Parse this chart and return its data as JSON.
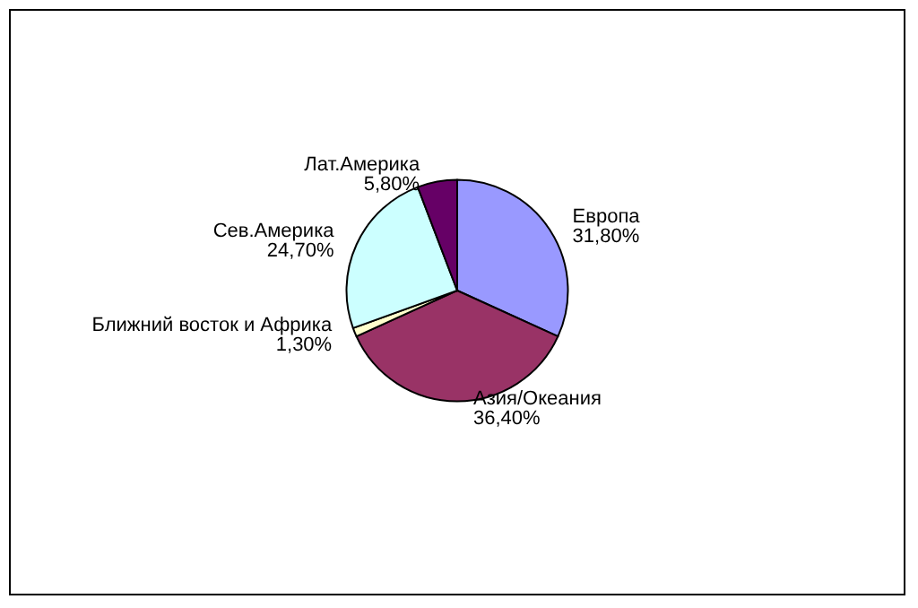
{
  "chart_data": {
    "type": "pie",
    "categories": [
      "Европа",
      "Азия/Океания",
      "Ближний восток и Африка",
      "Сев.Америка",
      "Лат.Америка"
    ],
    "values": [
      31.8,
      36.4,
      1.3,
      24.7,
      5.8
    ],
    "value_labels": [
      "31,80%",
      "36,40%",
      "1,30%",
      "24,70%",
      "5,80%"
    ],
    "colors": [
      "#9999ff",
      "#993366",
      "#ffffcc",
      "#ccffff",
      "#660066"
    ],
    "legend": false
  }
}
